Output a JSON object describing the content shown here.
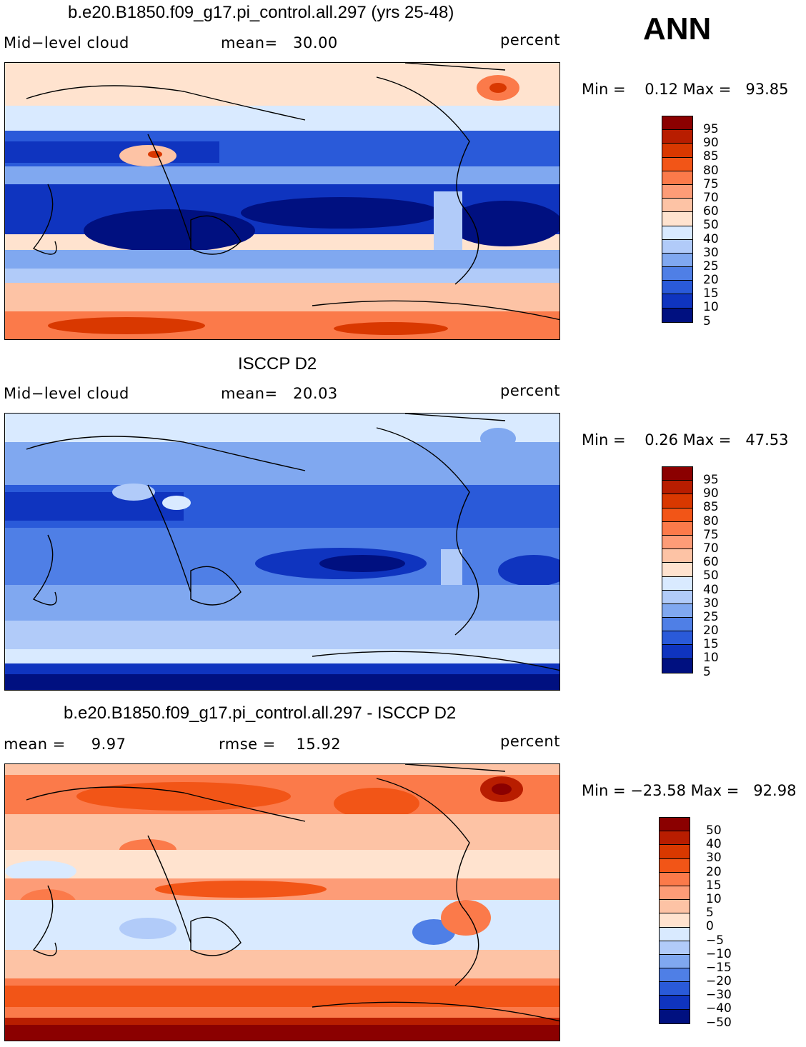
{
  "season": "ANN",
  "panels": [
    {
      "title": "b.e20.B1850.f09_g17.pi_control.all.297 (yrs 25-48)",
      "left_label": "Mid−level cloud",
      "center_label": "mean=   30.00",
      "units": "percent",
      "minmax": "Min =    0.12 Max =   93.85",
      "colorbar_labels": [
        "95",
        "90",
        "85",
        "80",
        "75",
        "70",
        "60",
        "50",
        "40",
        "30",
        "25",
        "20",
        "15",
        "10",
        "5"
      ],
      "colorbar_colors": [
        "#8b0000",
        "#b81d00",
        "#d93800",
        "#f25517",
        "#fb7a4a",
        "#fd9c77",
        "#fdc3a5",
        "#ffe3cf",
        "#d9eaff",
        "#b1cbf9",
        "#80a8f0",
        "#4f7fe6",
        "#2a5ad9",
        "#0f34bf",
        "#001080"
      ]
    },
    {
      "title": "ISCCP D2",
      "left_label": "Mid−level cloud",
      "center_label": "mean=   20.03",
      "units": "percent",
      "minmax": "Min =    0.26 Max =   47.53",
      "colorbar_labels": [
        "95",
        "90",
        "85",
        "80",
        "75",
        "70",
        "60",
        "50",
        "40",
        "30",
        "25",
        "20",
        "15",
        "10",
        "5"
      ],
      "colorbar_colors": [
        "#8b0000",
        "#b81d00",
        "#d93800",
        "#f25517",
        "#fb7a4a",
        "#fd9c77",
        "#fdc3a5",
        "#ffe3cf",
        "#d9eaff",
        "#b1cbf9",
        "#80a8f0",
        "#4f7fe6",
        "#2a5ad9",
        "#0f34bf",
        "#001080"
      ]
    },
    {
      "title": "b.e20.B1850.f09_g17.pi_control.all.297 - ISCCP D2",
      "left_label": "mean =     9.97",
      "center_label": "rmse =    15.92",
      "units": "percent",
      "minmax": "Min = −23.58 Max =   92.98",
      "colorbar_labels": [
        "50",
        "40",
        "30",
        "20",
        "15",
        "10",
        "5",
        "0",
        "−5",
        "−10",
        "−15",
        "−20",
        "−30",
        "−40",
        "−50"
      ],
      "colorbar_colors": [
        "#8b0000",
        "#b81d00",
        "#d93800",
        "#f25517",
        "#fb7a4a",
        "#fd9c77",
        "#fdc3a5",
        "#ffe3cf",
        "#d9eaff",
        "#b1cbf9",
        "#80a8f0",
        "#4f7fe6",
        "#2a5ad9",
        "#0f34bf",
        "#001080"
      ]
    }
  ]
}
